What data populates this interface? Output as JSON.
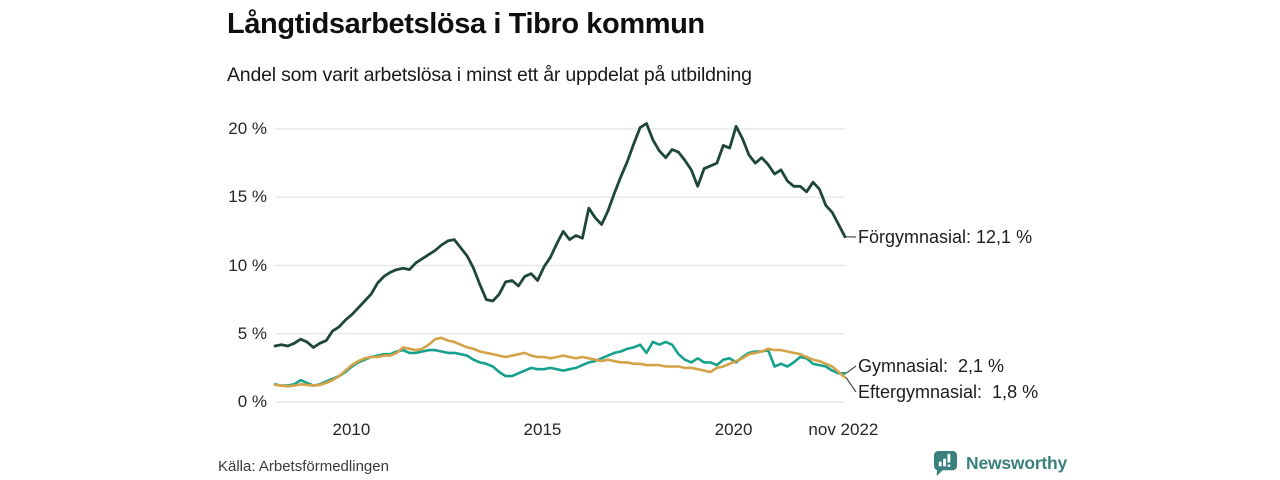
{
  "header": {
    "title": "Långtidsarbetslösa i Tibro kommun",
    "subtitle": "Andel som varit arbetslösa i minst ett år uppdelat på utbildning"
  },
  "source": {
    "label": "Källa: Arbetsförmedlingen"
  },
  "branding": {
    "name": "Newsworthy",
    "icon": "bar-chart-speech-bubble-icon",
    "color": "#3a817d"
  },
  "colors": {
    "grid": "#e8e8e8",
    "connector": "#4a4a4a",
    "background": "#ffffff"
  },
  "chart_data": {
    "type": "line",
    "title": "Långtidsarbetslösa i Tibro kommun",
    "subtitle": "Andel som varit arbetslösa i minst ett år uppdelat på utbildning",
    "unit": "%",
    "grid": "horizontal",
    "legend": "end-labels",
    "x_range_years": [
      2008.0,
      2022.917
    ],
    "x_ticks": [
      {
        "label": "2010",
        "year": 2010
      },
      {
        "label": "2015",
        "year": 2015
      },
      {
        "label": "2020",
        "year": 2020
      },
      {
        "label": "nov 2022",
        "year": 2022.875
      }
    ],
    "ylim": [
      0,
      21
    ],
    "y_ticks": [
      {
        "value": 0,
        "label": "0 %"
      },
      {
        "value": 5,
        "label": "5 %"
      },
      {
        "value": 10,
        "label": "10 %"
      },
      {
        "value": 15,
        "label": "15 %"
      },
      {
        "value": 20,
        "label": "20 %"
      }
    ],
    "series": [
      {
        "name": "Förgymnasial",
        "color": "#1e463b",
        "end_value": "12,1 %",
        "end_label": "Förgymnasial: 12,1 %",
        "values": [
          4.1,
          4.2,
          4.1,
          4.3,
          4.6,
          4.4,
          4.0,
          4.3,
          4.5,
          5.2,
          5.5,
          6.0,
          6.4,
          6.9,
          7.4,
          7.9,
          8.7,
          9.2,
          9.5,
          9.7,
          9.8,
          9.7,
          10.2,
          10.5,
          10.8,
          11.1,
          11.5,
          11.8,
          11.9,
          11.3,
          10.7,
          9.8,
          8.6,
          7.5,
          7.4,
          7.9,
          8.8,
          8.9,
          8.5,
          9.2,
          9.4,
          8.9,
          9.9,
          10.6,
          11.6,
          12.5,
          11.9,
          12.2,
          12.0,
          14.2,
          13.5,
          13.0,
          14.0,
          15.3,
          16.5,
          17.6,
          18.9,
          20.1,
          20.4,
          19.2,
          18.4,
          17.9,
          18.5,
          18.3,
          17.7,
          17.0,
          15.8,
          17.1,
          17.3,
          17.5,
          18.8,
          18.6,
          20.2,
          19.3,
          18.1,
          17.5,
          17.9,
          17.4,
          16.7,
          17.0,
          16.2,
          15.8,
          15.8,
          15.4,
          16.1,
          15.6,
          14.4,
          13.9,
          13.0,
          12.1
        ]
      },
      {
        "name": "Gymnasial",
        "color": "#16a18c",
        "end_value": "2,1 %",
        "end_label": "Gymnasial:  2,1 %",
        "values": [
          1.3,
          1.2,
          1.2,
          1.3,
          1.6,
          1.4,
          1.2,
          1.3,
          1.5,
          1.7,
          1.9,
          2.2,
          2.6,
          2.9,
          3.1,
          3.3,
          3.4,
          3.5,
          3.5,
          3.7,
          3.8,
          3.6,
          3.6,
          3.7,
          3.8,
          3.8,
          3.7,
          3.6,
          3.6,
          3.5,
          3.4,
          3.1,
          2.9,
          2.8,
          2.6,
          2.2,
          1.9,
          1.9,
          2.1,
          2.3,
          2.5,
          2.4,
          2.4,
          2.5,
          2.4,
          2.3,
          2.4,
          2.5,
          2.7,
          2.9,
          3.0,
          3.2,
          3.4,
          3.6,
          3.7,
          3.9,
          4.0,
          4.2,
          3.6,
          4.4,
          4.2,
          4.4,
          4.2,
          3.5,
          3.1,
          2.9,
          3.2,
          2.9,
          2.9,
          2.7,
          3.1,
          3.2,
          2.9,
          3.3,
          3.6,
          3.7,
          3.7,
          3.8,
          2.6,
          2.8,
          2.6,
          2.9,
          3.3,
          3.2,
          2.8,
          2.7,
          2.6,
          2.3,
          2.1,
          2.1
        ]
      },
      {
        "name": "Eftergymnasial",
        "color": "#d3a249",
        "end_value": "1,8 %",
        "end_label": "Eftergymnasial:  1,8 %",
        "values": [
          1.25,
          1.2,
          1.15,
          1.2,
          1.3,
          1.25,
          1.2,
          1.25,
          1.4,
          1.6,
          1.9,
          2.3,
          2.7,
          3.0,
          3.2,
          3.3,
          3.3,
          3.4,
          3.4,
          3.6,
          4.0,
          3.9,
          3.8,
          3.9,
          4.2,
          4.6,
          4.7,
          4.5,
          4.4,
          4.2,
          4.0,
          3.9,
          3.7,
          3.6,
          3.5,
          3.4,
          3.3,
          3.4,
          3.5,
          3.6,
          3.4,
          3.3,
          3.3,
          3.2,
          3.3,
          3.4,
          3.3,
          3.2,
          3.3,
          3.2,
          3.1,
          3.0,
          3.1,
          3.0,
          2.9,
          2.9,
          2.8,
          2.8,
          2.7,
          2.7,
          2.7,
          2.6,
          2.6,
          2.6,
          2.5,
          2.5,
          2.4,
          2.3,
          2.2,
          2.5,
          2.6,
          2.8,
          3.0,
          3.2,
          3.5,
          3.6,
          3.7,
          3.9,
          3.8,
          3.8,
          3.7,
          3.6,
          3.5,
          3.3,
          3.1,
          3.0,
          2.8,
          2.6,
          2.2,
          1.8
        ]
      }
    ]
  }
}
